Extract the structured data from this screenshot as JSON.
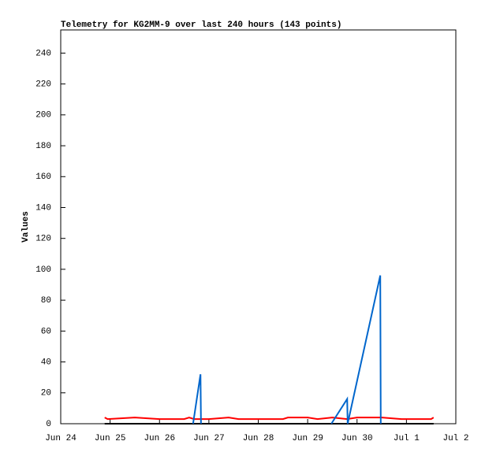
{
  "chart_data": {
    "type": "line",
    "title": "Telemetry for KG2MM-9 over last 240 hours (143 points)",
    "ylabel": "Values",
    "xlim": [
      0,
      8
    ],
    "ylim": [
      0,
      255
    ],
    "xticks": [
      {
        "value": 0,
        "label": "Jun 24"
      },
      {
        "value": 1,
        "label": "Jun 25"
      },
      {
        "value": 2,
        "label": "Jun 26"
      },
      {
        "value": 3,
        "label": "Jun 27"
      },
      {
        "value": 4,
        "label": "Jun 28"
      },
      {
        "value": 5,
        "label": "Jun 29"
      },
      {
        "value": 6,
        "label": "Jun 30"
      },
      {
        "value": 7,
        "label": "Jul 1"
      },
      {
        "value": 8,
        "label": "Jul 2"
      }
    ],
    "yticks": [
      0,
      20,
      40,
      60,
      80,
      100,
      120,
      140,
      160,
      180,
      200,
      220,
      240
    ],
    "series": [
      {
        "color": "#ff0000",
        "x": [
          0.89,
          0.95,
          1.5,
          2.0,
          2.5,
          2.6,
          2.7,
          3.0,
          3.4,
          3.6,
          4.5,
          4.6,
          5.0,
          5.2,
          5.5,
          5.8,
          6.0,
          6.5,
          6.9,
          7.5,
          7.55
        ],
        "values": [
          4,
          3,
          4,
          3,
          3,
          4,
          3,
          3,
          4,
          3,
          3,
          4,
          4,
          3,
          4,
          3,
          4,
          4,
          3,
          3,
          4
        ]
      },
      {
        "color": "#000000",
        "x": [
          0.89,
          7.55
        ],
        "values": [
          0,
          0
        ]
      },
      {
        "color": "#0066cc",
        "x": [
          2.68,
          2.83,
          2.84,
          4.0,
          5.48,
          5.8,
          5.81,
          6.47,
          6.48
        ],
        "values": [
          0,
          32,
          0,
          null,
          0,
          16,
          0,
          96,
          0
        ]
      }
    ]
  }
}
